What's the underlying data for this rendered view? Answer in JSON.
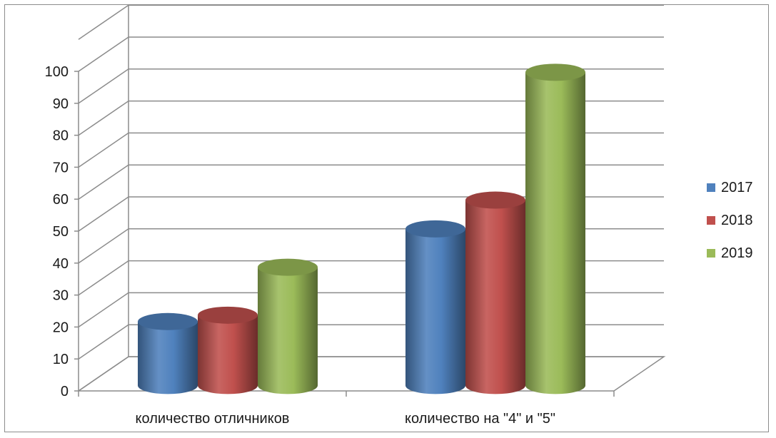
{
  "chart_data": {
    "type": "bar",
    "categories": [
      "количество отличников",
      "количество на \"4\" и \"5\""
    ],
    "series": [
      {
        "name": "2017",
        "values": [
          20,
          49
        ]
      },
      {
        "name": "2018",
        "values": [
          22,
          58
        ]
      },
      {
        "name": "2019",
        "values": [
          37,
          98
        ]
      }
    ],
    "colors": [
      "#4f81bd",
      "#c0504d",
      "#9bbb59"
    ],
    "ylim": [
      0,
      100
    ],
    "yticks": [
      "0",
      "10",
      "20",
      "30",
      "40",
      "50",
      "60",
      "70",
      "80",
      "90",
      "100"
    ],
    "grid": true,
    "legend": "right",
    "style": "3d-cylinder"
  }
}
